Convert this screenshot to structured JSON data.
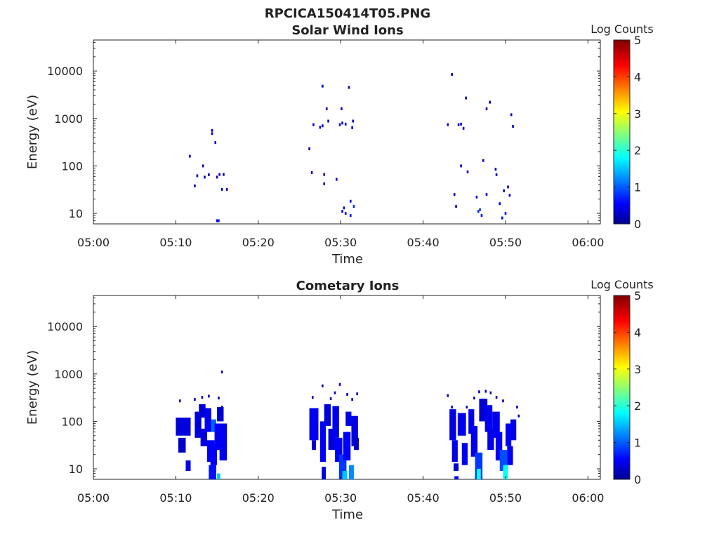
{
  "figure_title": "RPCICA150414T05.PNG",
  "colormap": "jet",
  "chart_data": [
    {
      "type": "heatmap",
      "title": "Solar Wind Ions",
      "xlabel": "Time",
      "ylabel": "Energy (eV)",
      "x_ticks": [
        "05:00",
        "05:10",
        "05:20",
        "05:30",
        "05:40",
        "05:50",
        "06:00"
      ],
      "xlim_minutes": [
        0,
        61.5
      ],
      "y_scale": "log",
      "y_ticks": [
        "10",
        "100",
        "1000",
        "10000"
      ],
      "ylim": [
        6,
        45000
      ],
      "colorbar": {
        "label": "Log Counts",
        "ticks": [
          "0",
          "1",
          "2",
          "3",
          "4",
          "5"
        ],
        "range": [
          0,
          5
        ]
      },
      "cells": [
        [
          11.7,
          160,
          0.3
        ],
        [
          12.3,
          38,
          0.3
        ],
        [
          12.6,
          62,
          0.2
        ],
        [
          13.3,
          100,
          0.3
        ],
        [
          13.5,
          58,
          0.2
        ],
        [
          14.0,
          65,
          0.3
        ],
        [
          14.4,
          480,
          0.5
        ],
        [
          14.4,
          560,
          0.4
        ],
        [
          14.8,
          310,
          0.3
        ],
        [
          15.0,
          58,
          0.3
        ],
        [
          15.0,
          7,
          0.6
        ],
        [
          15.2,
          7,
          0.7
        ],
        [
          15.3,
          66,
          0.2
        ],
        [
          15.6,
          32,
          0.3
        ],
        [
          15.8,
          66,
          0.2
        ],
        [
          16.2,
          32,
          0.3
        ],
        [
          26.2,
          230,
          0.3
        ],
        [
          26.5,
          72,
          0.2
        ],
        [
          26.7,
          740,
          0.4
        ],
        [
          27.5,
          650,
          0.5
        ],
        [
          27.8,
          700,
          0.4
        ],
        [
          27.8,
          4800,
          0.3
        ],
        [
          28.0,
          42,
          0.3
        ],
        [
          28.0,
          66,
          0.2
        ],
        [
          28.3,
          1600,
          0.3
        ],
        [
          28.5,
          880,
          0.3
        ],
        [
          29.5,
          52,
          0.3
        ],
        [
          29.9,
          740,
          0.5
        ],
        [
          30.1,
          1600,
          0.3
        ],
        [
          30.2,
          800,
          0.4
        ],
        [
          30.2,
          11,
          0.5
        ],
        [
          30.4,
          13,
          0.5
        ],
        [
          30.6,
          760,
          0.4
        ],
        [
          30.6,
          10,
          0.7
        ],
        [
          31.0,
          4500,
          0.3
        ],
        [
          31.2,
          18,
          0.6
        ],
        [
          31.2,
          9,
          0.7
        ],
        [
          31.4,
          640,
          0.4
        ],
        [
          31.5,
          880,
          0.3
        ],
        [
          31.6,
          14,
          0.8
        ],
        [
          43.0,
          740,
          0.4
        ],
        [
          43.5,
          8500,
          0.3
        ],
        [
          43.8,
          25,
          0.4
        ],
        [
          44.0,
          14,
          0.5
        ],
        [
          44.3,
          740,
          0.4
        ],
        [
          44.6,
          760,
          0.3
        ],
        [
          44.6,
          100,
          0.3
        ],
        [
          44.9,
          620,
          0.3
        ],
        [
          45.2,
          2700,
          0.3
        ],
        [
          45.4,
          75,
          0.3
        ],
        [
          46.5,
          22,
          0.5
        ],
        [
          46.7,
          11,
          0.8
        ],
        [
          46.9,
          12,
          0.9
        ],
        [
          47.1,
          9,
          0.6
        ],
        [
          47.3,
          130,
          0.3
        ],
        [
          47.7,
          25,
          0.5
        ],
        [
          47.7,
          1600,
          0.3
        ],
        [
          48.1,
          2200,
          0.3
        ],
        [
          48.8,
          85,
          0.3
        ],
        [
          48.9,
          65,
          0.3
        ],
        [
          49.3,
          16,
          0.5
        ],
        [
          49.6,
          8,
          0.6
        ],
        [
          49.8,
          30,
          0.4
        ],
        [
          50.0,
          10,
          0.7
        ],
        [
          50.3,
          36,
          0.4
        ],
        [
          50.5,
          24,
          0.6
        ],
        [
          50.7,
          1200,
          0.3
        ],
        [
          50.9,
          680,
          0.3
        ]
      ]
    },
    {
      "type": "heatmap",
      "title": "Cometary Ions",
      "xlabel": "Time",
      "ylabel": "Energy (eV)",
      "x_ticks": [
        "05:00",
        "05:10",
        "05:20",
        "05:30",
        "05:40",
        "05:50",
        "06:00"
      ],
      "xlim_minutes": [
        0,
        61.5
      ],
      "y_scale": "log",
      "y_ticks": [
        "10",
        "100",
        "1000",
        "10000"
      ],
      "ylim": [
        6,
        45000
      ],
      "colorbar": {
        "label": "Log Counts",
        "ticks": [
          "0",
          "1",
          "2",
          "3",
          "4",
          "5"
        ],
        "range": [
          0,
          5
        ]
      },
      "cells": [
        [
          15.6,
          1100,
          0.3
        ],
        [
          29.9,
          600,
          0.3
        ],
        [
          48.2,
          400,
          0.3
        ],
        [
          10.5,
          270,
          0.3
        ],
        [
          10.5,
          60,
          0.4
        ],
        [
          12.3,
          290,
          0.3
        ],
        [
          13.2,
          320,
          0.3
        ],
        [
          14.0,
          340,
          0.4
        ],
        [
          15.2,
          310,
          0.3
        ],
        [
          15.6,
          200,
          0.3
        ],
        [
          26.6,
          320,
          0.3
        ],
        [
          27.8,
          560,
          0.3
        ],
        [
          28.8,
          300,
          0.3
        ],
        [
          29.3,
          400,
          0.3
        ],
        [
          30.8,
          370,
          0.3
        ],
        [
          31.4,
          290,
          0.3
        ],
        [
          32.0,
          380,
          0.3
        ],
        [
          43.0,
          350,
          0.3
        ],
        [
          43.5,
          200,
          0.3
        ],
        [
          45.3,
          200,
          0.3
        ],
        [
          46.2,
          310,
          0.3
        ],
        [
          46.8,
          420,
          0.3
        ],
        [
          47.6,
          430,
          0.3
        ],
        [
          48.9,
          320,
          0.3
        ],
        [
          49.7,
          270,
          0.3
        ],
        [
          51.4,
          200,
          0.3
        ],
        [
          51.6,
          130,
          0.3
        ]
      ],
      "bands": [
        [
          10.0,
          11.8,
          50,
          120,
          0.45
        ],
        [
          10.3,
          11.2,
          22,
          45,
          0.35
        ],
        [
          11.2,
          11.8,
          9,
          15,
          0.5
        ],
        [
          12.3,
          13.1,
          45,
          160,
          0.45
        ],
        [
          12.8,
          13.6,
          120,
          230,
          0.4
        ],
        [
          13.0,
          13.8,
          30,
          70,
          0.45
        ],
        [
          13.5,
          14.3,
          60,
          190,
          0.55
        ],
        [
          13.8,
          14.7,
          14,
          40,
          0.6
        ],
        [
          14.3,
          14.9,
          60,
          110,
          1.1
        ],
        [
          14.2,
          15.0,
          12,
          30,
          0.6
        ],
        [
          14.0,
          14.9,
          6,
          12,
          0.7
        ],
        [
          14.7,
          15.4,
          25,
          90,
          0.55
        ],
        [
          15.0,
          15.4,
          6,
          8,
          1.6
        ],
        [
          15.0,
          15.8,
          100,
          200,
          0.4
        ],
        [
          15.3,
          16.2,
          15,
          90,
          0.55
        ],
        [
          26.2,
          27.3,
          40,
          190,
          0.55
        ],
        [
          26.5,
          27.0,
          25,
          40,
          0.4
        ],
        [
          27.5,
          28.2,
          14,
          100,
          0.6
        ],
        [
          27.7,
          28.2,
          6,
          11,
          0.5
        ],
        [
          28.0,
          28.8,
          80,
          230,
          0.45
        ],
        [
          28.5,
          29.3,
          25,
          70,
          0.45
        ],
        [
          29.0,
          29.8,
          45,
          210,
          0.55
        ],
        [
          29.3,
          30.2,
          14,
          45,
          0.6
        ],
        [
          29.8,
          30.7,
          6,
          20,
          0.9
        ],
        [
          30.2,
          30.8,
          6,
          9,
          1.6
        ],
        [
          30.3,
          31.2,
          15,
          60,
          0.6
        ],
        [
          30.6,
          31.3,
          80,
          160,
          0.5
        ],
        [
          31.0,
          31.6,
          6,
          12,
          1.3
        ],
        [
          31.3,
          32.1,
          30,
          130,
          0.5
        ],
        [
          31.6,
          32.2,
          25,
          45,
          0.3
        ],
        [
          43.2,
          44.0,
          40,
          180,
          0.5
        ],
        [
          43.5,
          44.2,
          14,
          40,
          0.5
        ],
        [
          43.7,
          44.3,
          9,
          13,
          0.4
        ],
        [
          43.8,
          44.3,
          6,
          7,
          0.6
        ],
        [
          44.2,
          45.2,
          50,
          150,
          0.55
        ],
        [
          44.7,
          45.4,
          12,
          35,
          0.55
        ],
        [
          45.5,
          46.2,
          55,
          180,
          0.5
        ],
        [
          45.8,
          46.6,
          18,
          80,
          0.55
        ],
        [
          46.3,
          47.2,
          6,
          22,
          0.9
        ],
        [
          46.5,
          47.0,
          6,
          10,
          1.9
        ],
        [
          46.8,
          47.8,
          100,
          300,
          0.4
        ],
        [
          47.5,
          48.4,
          60,
          220,
          0.55
        ],
        [
          47.8,
          48.6,
          25,
          70,
          0.5
        ],
        [
          48.4,
          49.3,
          45,
          160,
          0.55
        ],
        [
          48.8,
          49.6,
          15,
          60,
          0.6
        ],
        [
          49.3,
          50.2,
          9,
          25,
          1.0
        ],
        [
          49.7,
          50.3,
          6,
          12,
          1.9
        ],
        [
          50.0,
          50.7,
          30,
          90,
          0.6
        ],
        [
          50.2,
          50.9,
          12,
          30,
          0.55
        ],
        [
          50.6,
          51.3,
          40,
          110,
          0.5
        ]
      ]
    }
  ]
}
